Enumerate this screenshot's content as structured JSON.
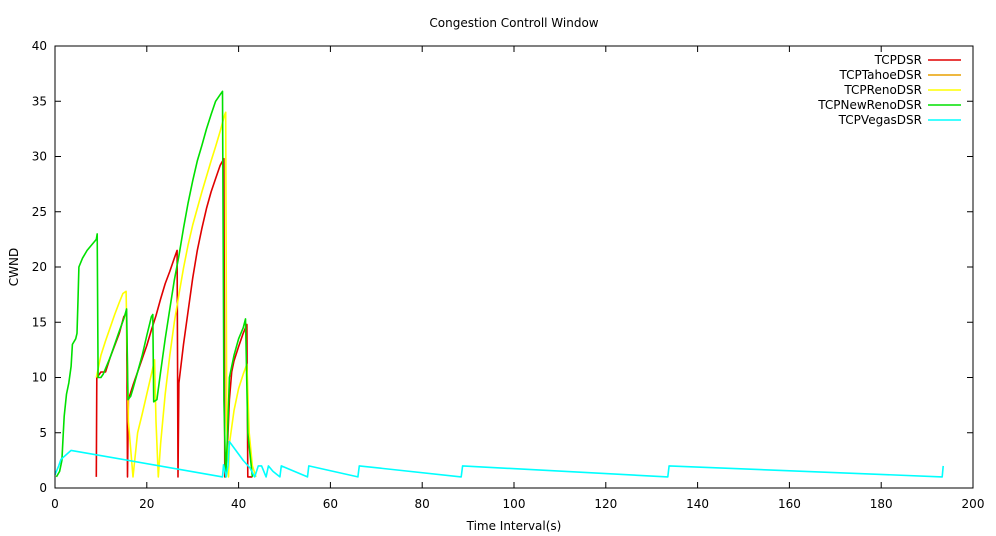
{
  "chart_data": {
    "type": "line",
    "title": "Congestion Controll Window",
    "xlabel": "Time Interval(s)",
    "ylabel": "CWND",
    "xlim": [
      0,
      200
    ],
    "ylim": [
      0,
      40
    ],
    "xticks": [
      0,
      20,
      40,
      60,
      80,
      100,
      120,
      140,
      160,
      180,
      200
    ],
    "yticks": [
      0,
      5,
      10,
      15,
      20,
      25,
      30,
      35,
      40
    ],
    "grid": false,
    "legend_position": "top-right",
    "series": [
      {
        "name": "TCPDSR",
        "color": "#e00000",
        "points": [
          [
            9.0,
            1.0
          ],
          [
            9.1,
            10.0
          ],
          [
            9.5,
            10.2
          ],
          [
            10.0,
            10.5
          ],
          [
            11.0,
            10.5
          ],
          [
            12.0,
            11.8
          ],
          [
            13.0,
            12.9
          ],
          [
            14.0,
            14.0
          ],
          [
            15.0,
            15.5
          ],
          [
            15.6,
            15.8
          ],
          [
            15.8,
            1.0
          ],
          [
            16.0,
            8.0
          ],
          [
            17.0,
            9.3
          ],
          [
            18.0,
            10.5
          ],
          [
            19.0,
            11.7
          ],
          [
            20.0,
            12.9
          ],
          [
            21.0,
            14.3
          ],
          [
            22.0,
            15.6
          ],
          [
            23.0,
            17.1
          ],
          [
            24.0,
            18.5
          ],
          [
            25.0,
            19.6
          ],
          [
            26.0,
            20.8
          ],
          [
            26.6,
            21.5
          ],
          [
            26.8,
            1.0
          ],
          [
            27.0,
            9.5
          ],
          [
            28.0,
            13.0
          ],
          [
            29.0,
            16.0
          ],
          [
            30.0,
            19.0
          ],
          [
            31.0,
            21.5
          ],
          [
            32.0,
            23.5
          ],
          [
            33.0,
            25.3
          ],
          [
            34.0,
            26.8
          ],
          [
            35.0,
            28.0
          ],
          [
            36.0,
            29.2
          ],
          [
            36.8,
            29.8
          ],
          [
            37.0,
            1.0
          ],
          [
            37.5,
            3.0
          ],
          [
            38.0,
            8.0
          ],
          [
            38.5,
            10.5
          ],
          [
            39.0,
            11.5
          ],
          [
            40.0,
            12.8
          ],
          [
            41.0,
            14.0
          ],
          [
            41.8,
            14.8
          ],
          [
            42.0,
            1.0
          ],
          [
            43.0,
            1.0
          ]
        ]
      },
      {
        "name": "TCPTahoeDSR",
        "color": "#e8a000",
        "points": []
      },
      {
        "name": "TCPRenoDSR",
        "color": "#ffff00",
        "points": [
          [
            9.0,
            10.0
          ],
          [
            10.0,
            12.0
          ],
          [
            11.0,
            13.3
          ],
          [
            12.0,
            14.5
          ],
          [
            13.0,
            15.7
          ],
          [
            14.0,
            16.8
          ],
          [
            14.8,
            17.6
          ],
          [
            15.5,
            17.8
          ],
          [
            16.0,
            6.0
          ],
          [
            17.0,
            1.0
          ],
          [
            18.0,
            5.0
          ],
          [
            19.0,
            6.7
          ],
          [
            20.0,
            8.5
          ],
          [
            21.0,
            10.3
          ],
          [
            21.7,
            11.6
          ],
          [
            22.0,
            6.0
          ],
          [
            22.5,
            1.0
          ],
          [
            23.0,
            4.0
          ],
          [
            24.0,
            8.5
          ],
          [
            25.0,
            12.0
          ],
          [
            26.0,
            15.0
          ],
          [
            27.0,
            17.5
          ],
          [
            28.0,
            19.9
          ],
          [
            29.0,
            22.0
          ],
          [
            30.0,
            23.8
          ],
          [
            31.0,
            25.3
          ],
          [
            32.0,
            26.8
          ],
          [
            33.0,
            28.2
          ],
          [
            34.0,
            29.6
          ],
          [
            35.0,
            30.9
          ],
          [
            36.0,
            32.3
          ],
          [
            37.0,
            33.8
          ],
          [
            37.2,
            34.0
          ],
          [
            37.4,
            6.0
          ],
          [
            37.8,
            1.0
          ],
          [
            38.0,
            4.0
          ],
          [
            39.0,
            7.0
          ],
          [
            40.0,
            9.0
          ],
          [
            41.0,
            10.3
          ],
          [
            41.8,
            11.2
          ],
          [
            42.3,
            5.0
          ],
          [
            43.0,
            2.0
          ],
          [
            43.8,
            1.0
          ]
        ]
      },
      {
        "name": "TCPNewRenoDSR",
        "color": "#00e000",
        "points": [
          [
            0.3,
            1.0
          ],
          [
            1.0,
            1.5
          ],
          [
            1.5,
            2.5
          ],
          [
            1.8,
            5.0
          ],
          [
            2.0,
            6.5
          ],
          [
            2.5,
            8.5
          ],
          [
            3.0,
            9.5
          ],
          [
            3.5,
            11.0
          ],
          [
            3.8,
            13.0
          ],
          [
            4.5,
            13.5
          ],
          [
            4.8,
            14.0
          ],
          [
            5.0,
            17.0
          ],
          [
            5.2,
            20.0
          ],
          [
            6.0,
            20.8
          ],
          [
            7.0,
            21.5
          ],
          [
            8.0,
            22.0
          ],
          [
            9.0,
            22.5
          ],
          [
            9.2,
            23.0
          ],
          [
            9.4,
            10.0
          ],
          [
            10.0,
            10.0
          ],
          [
            10.5,
            10.3
          ],
          [
            11.0,
            10.8
          ],
          [
            12.0,
            11.8
          ],
          [
            13.0,
            13.0
          ],
          [
            14.0,
            14.2
          ],
          [
            15.0,
            15.3
          ],
          [
            15.6,
            16.2
          ],
          [
            15.9,
            8.0
          ],
          [
            16.5,
            8.3
          ],
          [
            17.0,
            9.0
          ],
          [
            18.0,
            10.5
          ],
          [
            19.0,
            12.0
          ],
          [
            20.0,
            13.8
          ],
          [
            21.0,
            15.5
          ],
          [
            21.3,
            15.7
          ],
          [
            21.5,
            7.8
          ],
          [
            22.2,
            8.0
          ],
          [
            23.0,
            10.5
          ],
          [
            24.0,
            13.5
          ],
          [
            25.0,
            16.2
          ],
          [
            26.0,
            18.8
          ],
          [
            27.0,
            21.0
          ],
          [
            28.0,
            23.5
          ],
          [
            29.0,
            25.8
          ],
          [
            30.0,
            27.8
          ],
          [
            31.0,
            29.6
          ],
          [
            32.0,
            31.0
          ],
          [
            33.0,
            32.5
          ],
          [
            34.0,
            33.8
          ],
          [
            35.0,
            35.0
          ],
          [
            36.0,
            35.6
          ],
          [
            36.5,
            35.9
          ],
          [
            36.8,
            8.0
          ],
          [
            37.2,
            1.0
          ],
          [
            37.6,
            5.0
          ],
          [
            38.0,
            10.0
          ],
          [
            39.0,
            12.0
          ],
          [
            40.0,
            13.5
          ],
          [
            41.0,
            14.5
          ],
          [
            41.5,
            15.3
          ],
          [
            42.0,
            5.0
          ],
          [
            43.0,
            1.0
          ]
        ]
      },
      {
        "name": "TCPVegasDSR",
        "color": "#00ffff",
        "points": [
          [
            0.0,
            1.2
          ],
          [
            0.8,
            2.0
          ],
          [
            1.3,
            2.6
          ],
          [
            3.5,
            3.4
          ],
          [
            36.5,
            1.0
          ],
          [
            36.7,
            2.1
          ],
          [
            37.3,
            1.0
          ],
          [
            37.7,
            2.0
          ],
          [
            38.0,
            4.2
          ],
          [
            41.0,
            2.5
          ],
          [
            42.5,
            1.8
          ],
          [
            43.5,
            1.0
          ],
          [
            44.3,
            2.0
          ],
          [
            45.0,
            2.0
          ],
          [
            46.0,
            1.0
          ],
          [
            46.5,
            2.0
          ],
          [
            47.5,
            1.5
          ],
          [
            49.0,
            1.0
          ],
          [
            49.3,
            2.0
          ],
          [
            55.0,
            1.0
          ],
          [
            55.3,
            2.0
          ],
          [
            66.0,
            1.0
          ],
          [
            66.3,
            2.0
          ],
          [
            88.5,
            1.0
          ],
          [
            88.8,
            2.0
          ],
          [
            133.5,
            1.0
          ],
          [
            133.8,
            2.0
          ],
          [
            193.3,
            1.0
          ],
          [
            193.5,
            2.0
          ]
        ]
      }
    ]
  }
}
